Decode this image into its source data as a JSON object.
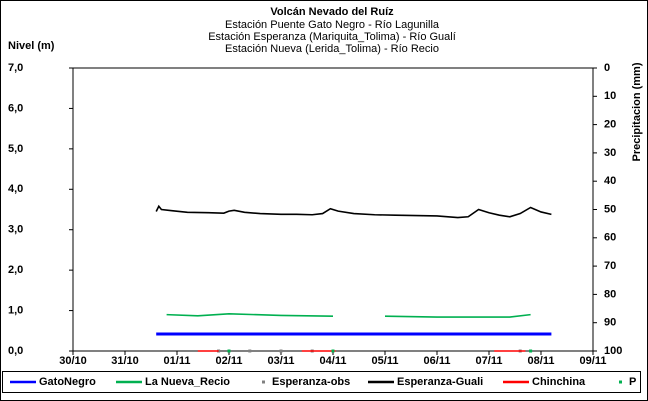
{
  "chart_data": {
    "type": "line",
    "title": "Volcán Nevado del Ruíz",
    "subtitles": [
      "Estación Puente Gato Negro - Río Lagunilla",
      "Estación Esperanza (Mariquita_Tolima) - Río Gualí",
      "Estación Nueva (Lerida_Tolima) - Río Recio"
    ],
    "ylabel": "Nivel (m)",
    "y2label": "Precipitacion (mm)",
    "xlim": [
      0,
      10
    ],
    "xticks": [
      {
        "value": 0,
        "label": "30/10"
      },
      {
        "value": 1,
        "label": "31/10"
      },
      {
        "value": 2,
        "label": "01/11"
      },
      {
        "value": 3,
        "label": "02/11"
      },
      {
        "value": 4,
        "label": "03/11"
      },
      {
        "value": 5,
        "label": "04/11"
      },
      {
        "value": 6,
        "label": "05/11"
      },
      {
        "value": 7,
        "label": "06/11"
      },
      {
        "value": 8,
        "label": "07/11"
      },
      {
        "value": 9,
        "label": "08/11"
      },
      {
        "value": 10,
        "label": "09/11"
      }
    ],
    "ylim": [
      0,
      7
    ],
    "yticks": [
      {
        "value": 0,
        "label": "0,0"
      },
      {
        "value": 1,
        "label": "1,0"
      },
      {
        "value": 2,
        "label": "2,0"
      },
      {
        "value": 3,
        "label": "3,0"
      },
      {
        "value": 4,
        "label": "4,0"
      },
      {
        "value": 5,
        "label": "5,0"
      },
      {
        "value": 6,
        "label": "6,0"
      },
      {
        "value": 7,
        "label": "7,0"
      }
    ],
    "y2lim": [
      100,
      0
    ],
    "y2ticks": [
      0,
      10,
      20,
      30,
      40,
      50,
      60,
      70,
      80,
      90,
      100
    ],
    "grid": false,
    "legend": "bottom",
    "series": [
      {
        "name": "GatoNegro",
        "color": "#0000ff",
        "style": "line",
        "x": [
          1.6,
          9.2
        ],
        "values": [
          0.42,
          0.42
        ]
      },
      {
        "name": "La Nueva_Recio",
        "color": "#00b050",
        "style": "line",
        "x": [
          1.8,
          2.4,
          3.0,
          4.0,
          5.0,
          5.05,
          6.0,
          7.0,
          8.0,
          8.4,
          8.8
        ],
        "values": [
          0.9,
          0.87,
          0.92,
          0.88,
          0.86,
          null,
          0.86,
          0.84,
          0.84,
          0.84,
          0.9
        ]
      },
      {
        "name": "Esperanza-obs",
        "color": "#808080",
        "style": "points",
        "x": [
          2.8,
          3.4,
          4.0,
          4.6,
          5.0,
          8.6
        ],
        "values": [
          0,
          0,
          0,
          0,
          0,
          0
        ]
      },
      {
        "name": "Esperanza-Guali",
        "color": "#000000",
        "style": "line",
        "x": [
          1.6,
          1.65,
          1.7,
          1.9,
          2.2,
          2.6,
          2.9,
          3.0,
          3.1,
          3.3,
          3.6,
          4.0,
          4.3,
          4.6,
          4.8,
          4.95,
          5.1,
          5.4,
          5.8,
          6.2,
          6.6,
          7.0,
          7.4,
          7.6,
          7.8,
          8.0,
          8.2,
          8.4,
          8.6,
          8.8,
          9.0,
          9.2
        ],
        "values": [
          3.45,
          3.58,
          3.5,
          3.47,
          3.43,
          3.42,
          3.41,
          3.46,
          3.48,
          3.43,
          3.4,
          3.38,
          3.38,
          3.37,
          3.4,
          3.52,
          3.46,
          3.4,
          3.37,
          3.36,
          3.35,
          3.34,
          3.3,
          3.32,
          3.5,
          3.42,
          3.36,
          3.32,
          3.4,
          3.55,
          3.44,
          3.38
        ]
      },
      {
        "name": "Chinchina",
        "color": "#ff0000",
        "style": "line",
        "x": [
          2.4,
          2.45,
          2.8,
          2.85,
          4.4,
          4.45,
          5.05,
          5.1,
          8.1,
          8.15,
          8.7
        ],
        "values": [
          0,
          0,
          0,
          null,
          0,
          0,
          0,
          null,
          0,
          0,
          0
        ]
      },
      {
        "name": "P",
        "color": "#00b050",
        "style": "points",
        "axis": "y2",
        "x": [
          3.0,
          5.0,
          8.8
        ],
        "values": [
          100,
          100,
          100
        ]
      }
    ]
  }
}
